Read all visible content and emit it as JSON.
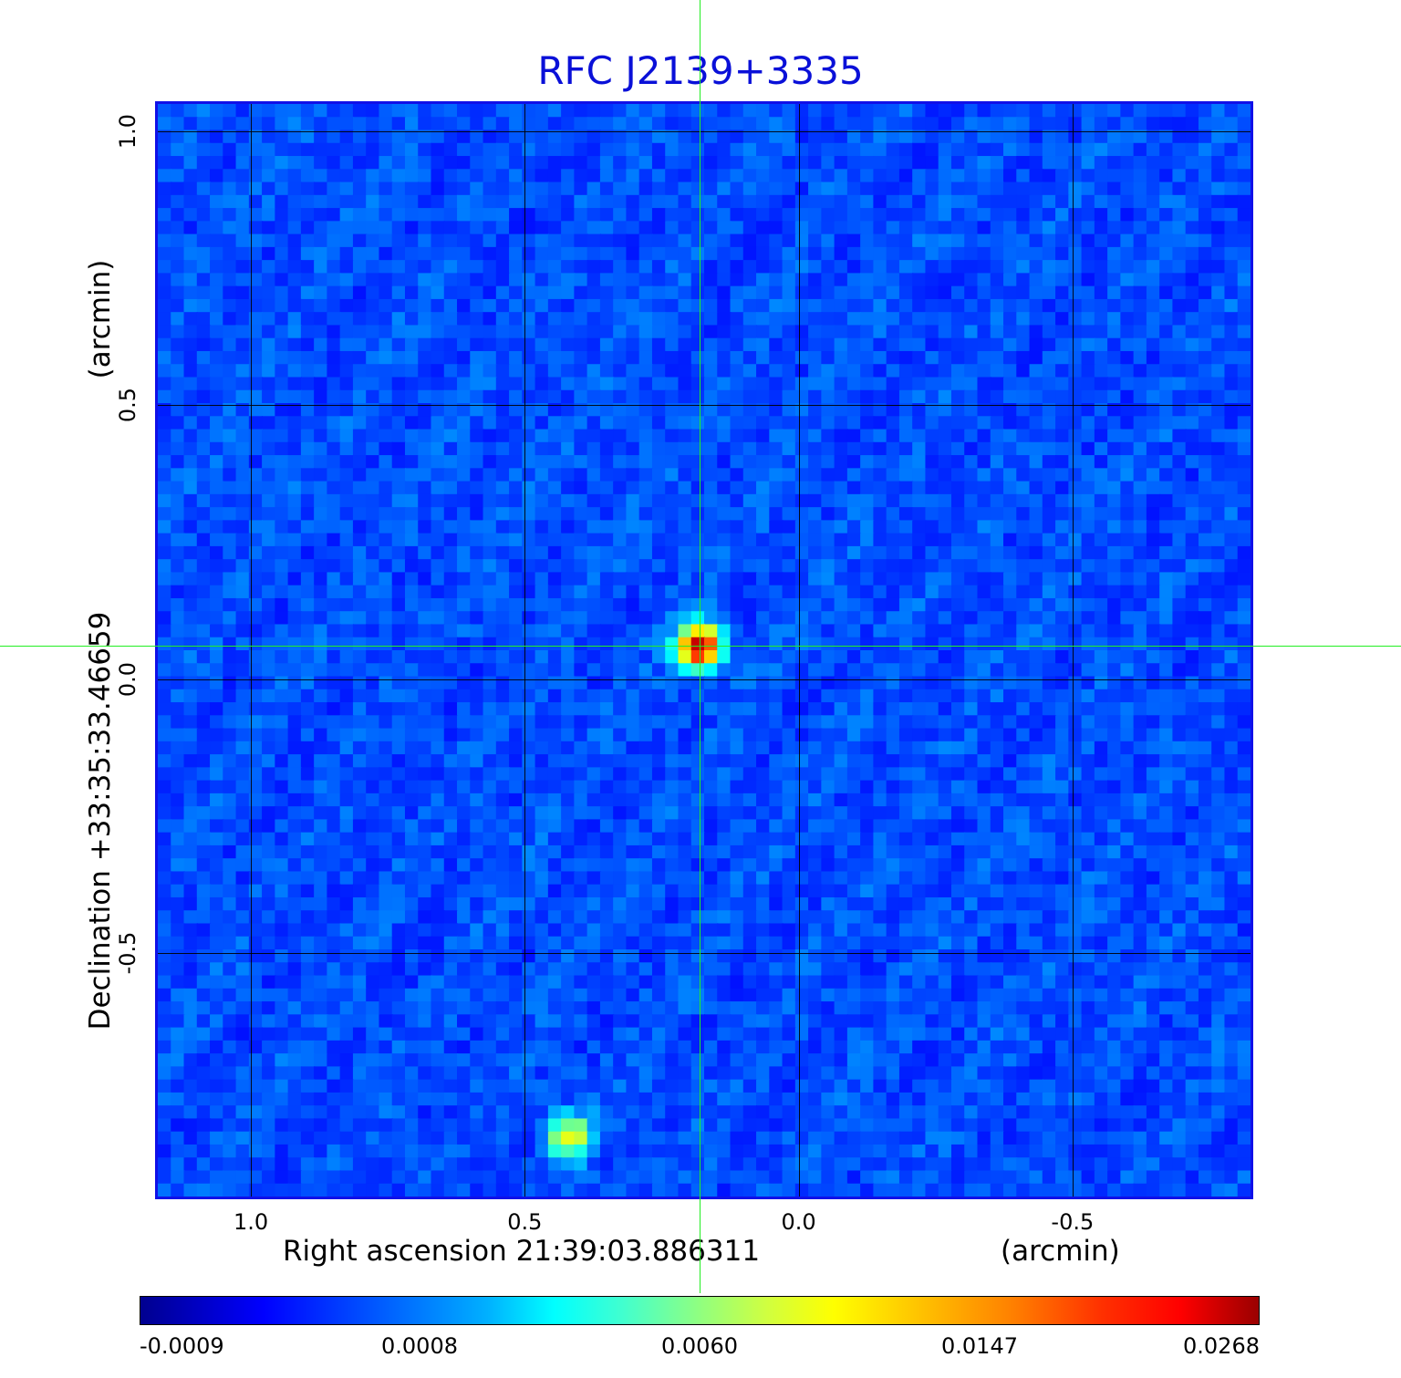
{
  "title": "RFC J2139+3335",
  "chart_data": {
    "type": "heatmap",
    "title": "RFC J2139+3335",
    "xlabel": "Right ascension  21:39:03.886311",
    "xunit": "(arcmin)",
    "ylabel": "Declination  +33:35:33.46659",
    "yunit": "(arcmin)",
    "x_ticks": [
      "1.0",
      "0.5",
      "0.0",
      "-0.5"
    ],
    "x_tick_values": [
      1.0,
      0.5,
      0.0,
      -0.5
    ],
    "y_ticks": [
      "1.0",
      "0.5",
      "0.0",
      "-0.5"
    ],
    "y_tick_values": [
      1.0,
      0.5,
      0.0,
      -0.5
    ],
    "xlim": [
      1.175,
      -0.83
    ],
    "ylim": [
      -0.95,
      1.055
    ],
    "grid": true,
    "crosshair": {
      "x": 0.18,
      "y": 0.06,
      "color": "#22ee22"
    },
    "sources": [
      {
        "x": 0.18,
        "y": 0.06,
        "peak": 0.0268
      },
      {
        "x": 0.42,
        "y": -0.84,
        "peak": 0.0147
      }
    ],
    "colorbar": {
      "labels": [
        "-0.0009",
        "0.0008",
        "0.0060",
        "0.0147",
        "0.0268"
      ],
      "min": -0.0009,
      "max": 0.0268,
      "colormap": "jet"
    },
    "background_level": 0.0
  }
}
